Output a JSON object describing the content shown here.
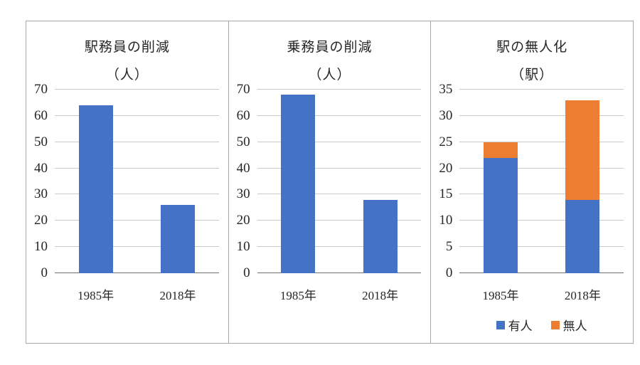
{
  "colors": {
    "bar_blue": "#4472c4",
    "bar_orange": "#ed7d31",
    "gridline": "#c9c9c9",
    "axis_line": "#6e6e6e",
    "panel_border": "#a9a9a9",
    "text": "#262626"
  },
  "chart_data": [
    {
      "type": "bar",
      "stacked": false,
      "title": "駅務員の削減",
      "subtitle": "（人）",
      "categories": [
        "1985年",
        "2018年"
      ],
      "series": [
        {
          "name": "",
          "key": "staff",
          "color_key": "bar_blue",
          "values": [
            64,
            26
          ]
        }
      ],
      "xlabel": "",
      "ylabel": "",
      "ylim": [
        0,
        70
      ],
      "yticks": [
        0,
        10,
        20,
        30,
        40,
        50,
        60,
        70
      ],
      "grid": true,
      "legend": null
    },
    {
      "type": "bar",
      "stacked": false,
      "title": "乗務員の削減",
      "subtitle": "（人）",
      "categories": [
        "1985年",
        "2018年"
      ],
      "series": [
        {
          "name": "",
          "key": "crew",
          "color_key": "bar_blue",
          "values": [
            68,
            28
          ]
        }
      ],
      "xlabel": "",
      "ylabel": "",
      "ylim": [
        0,
        70
      ],
      "yticks": [
        0,
        10,
        20,
        30,
        40,
        50,
        60,
        70
      ],
      "grid": true,
      "legend": null
    },
    {
      "type": "bar",
      "stacked": true,
      "title": "駅の無人化",
      "subtitle": "（駅）",
      "categories": [
        "1985年",
        "2018年"
      ],
      "series": [
        {
          "name": "有人",
          "key": "manned",
          "color_key": "bar_blue",
          "values": [
            22,
            14
          ]
        },
        {
          "name": "無人",
          "key": "unmanned",
          "color_key": "bar_orange",
          "values": [
            3,
            19
          ]
        }
      ],
      "xlabel": "",
      "ylabel": "",
      "ylim": [
        0,
        35
      ],
      "yticks": [
        0,
        5,
        10,
        15,
        20,
        25,
        30,
        35
      ],
      "grid": true,
      "legend": {
        "position": "bottom"
      }
    }
  ]
}
